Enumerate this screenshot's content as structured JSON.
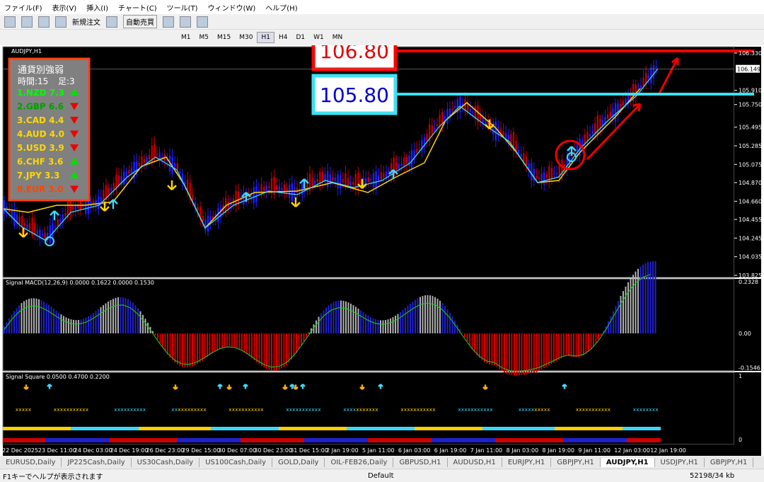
{
  "menu": [
    "ファイル(F)",
    "表示(V)",
    "挿入(I)",
    "チャート(C)",
    "ツール(T)",
    "ウィンドウ(W)",
    "ヘルプ(H)"
  ],
  "toolbar": {
    "new_order": "新規注文",
    "auto_trade": "自動売買",
    "timeframes": [
      "M1",
      "M5",
      "M15",
      "M30",
      "H1",
      "H4",
      "D1",
      "W1",
      "MN"
    ]
  },
  "chart": {
    "symbol": "AUDJPY,H1",
    "price_axis": [
      "106.330",
      "105.910",
      "105.750",
      "105.495",
      "105.285",
      "105.075",
      "104.870",
      "104.660",
      "104.455",
      "104.245",
      "104.035",
      "103.825"
    ],
    "current_price": "106.149",
    "annotations": [
      "106.80",
      "105.80"
    ]
  },
  "strength": {
    "title": "通貨別強弱",
    "time": "時間:15",
    "bars": "足:3",
    "rows": [
      {
        "label": "1.NZD 7.3",
        "color": "#00ff00",
        "dir": "up"
      },
      {
        "label": "2.GBP 6.6",
        "color": "#00a000",
        "dir": "down"
      },
      {
        "label": "3.CAD 4.4",
        "color": "#ffd700",
        "dir": "down"
      },
      {
        "label": "4.AUD 4.0",
        "color": "#ffd700",
        "dir": "down"
      },
      {
        "label": "5.USD 3.9",
        "color": "#ffd700",
        "dir": "down"
      },
      {
        "label": "6.CHF 3.6",
        "color": "#ffd700",
        "dir": "up"
      },
      {
        "label": "7.JPY 3.3",
        "color": "#ffd700",
        "dir": "up"
      },
      {
        "label": "8.EUR 3.0",
        "color": "#ff4500",
        "dir": "down"
      }
    ]
  },
  "macd": {
    "label": "Signal MACD(12,26,9) 0.0000 0.1622 0.0000 0.1530",
    "axis": [
      "0.2328",
      "0.00",
      "-0.1546"
    ]
  },
  "signal": {
    "label": "Signal Square 0.0500 0.4700 0.2200",
    "axis": [
      "1",
      "0"
    ]
  },
  "time_axis": [
    "22 Dec 2025",
    "23 Dec 11:00",
    "24 Dec 03:00",
    "24 Dec 19:00",
    "26 Dec 23:00",
    "29 Dec 15:00",
    "30 Dec 07:00",
    "30 Dec 23:00",
    "31 Dec 15:00",
    "2 Jan 19:00",
    "5 Jan 11:00",
    "6 Jan 03:00",
    "6 Jan 19:00",
    "7 Jan 11:00",
    "8 Jan 03:00",
    "8 Jan 19:00",
    "9 Jan 11:00",
    "12 Jan 03:00",
    "12 Jan 19:00"
  ],
  "tabs": {
    "items": [
      "EURUSD,Daily",
      "JP225Cash,Daily",
      "US30Cash,Daily",
      "US100Cash,Daily",
      "GOLD,Daily",
      "OIL-FEB26,Daily",
      "GBPUSD,H1",
      "AUDUSD,H1",
      "EURJPY,H1",
      "GBPJPY,H1",
      "AUDJPY,H1",
      "USDJPY,H1",
      "GBPJPY,H1"
    ],
    "active": 10
  },
  "status": {
    "help": "F1キーでヘルプが表示されます",
    "profile": "Default",
    "traffic": "52198/34 kb"
  }
}
